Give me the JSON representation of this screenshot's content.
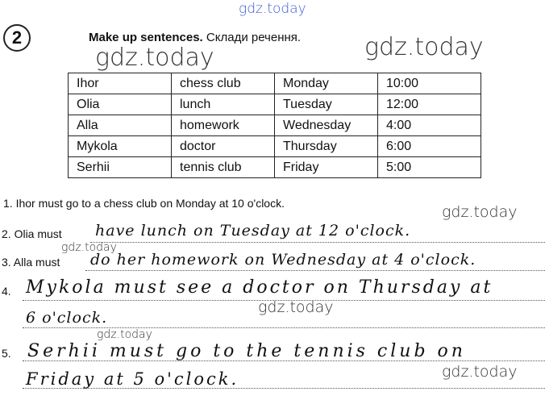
{
  "watermarks": [
    "gdz.today",
    "gdz.today",
    "gdz.today",
    "gdz.today",
    "gdz.today",
    "gdz.today",
    "gdz.today"
  ],
  "exercise": {
    "number": "2",
    "title_en": "Make up sentences.",
    "title_uk": "Склади речення."
  },
  "table": [
    [
      "Ihor",
      "chess club",
      "Monday",
      "10:00"
    ],
    [
      "Olia",
      "lunch",
      "Tuesday",
      "12:00"
    ],
    [
      "Alla",
      "homework",
      "Wednesday",
      "4:00"
    ],
    [
      "Mykola",
      "doctor",
      "Thursday",
      "6:00"
    ],
    [
      "Serhii",
      "tennis club",
      "Friday",
      "5:00"
    ]
  ],
  "sentences": {
    "s1": "1.  Ihor must go to a chess club on Monday at 10 o'clock.",
    "s2_prefix": "2. Olia must",
    "s2": "have lunch on Tuesday at 12 o'clock.",
    "s3_prefix": "3. Alla must",
    "s3": "do her homework on Wednesday at 4 o'clock.",
    "s4_prefix": "4.",
    "s4a": "Mykola must see a doctor on Thursday at",
    "s4b": "6 o'clock.",
    "s5_prefix": "5.",
    "s5a": "Serhii must go to the tennis club on",
    "s5b": "Friday at 5 o'clock."
  }
}
